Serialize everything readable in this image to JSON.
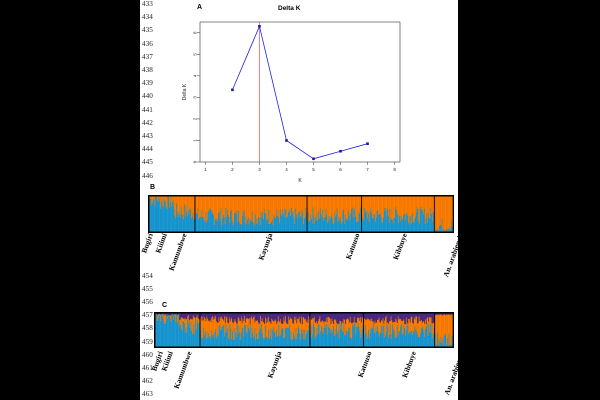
{
  "line_numbers_top": [
    "433",
    "434",
    "435",
    "436",
    "437",
    "438",
    "439",
    "440",
    "441",
    "442",
    "443",
    "444",
    "445",
    "446"
  ],
  "line_numbers_mid": [
    "454",
    "455",
    "456",
    "457",
    "458",
    "459",
    "460",
    "461",
    "462",
    "463"
  ],
  "panel_a": {
    "letter": "A",
    "chart_data": {
      "type": "line",
      "title": "Delta K",
      "xlabel": "K",
      "ylabel": "Delta K",
      "x": [
        2,
        3,
        4,
        5,
        6,
        7
      ],
      "y": [
        3.35,
        6.3,
        1.0,
        0.15,
        0.5,
        0.85
      ],
      "xlim": [
        0.8,
        8.2
      ],
      "ylim": [
        0,
        6.5
      ],
      "xticks": [
        "1",
        "2",
        "3",
        "4",
        "5",
        "6",
        "7",
        "8"
      ],
      "yticks": [
        "0",
        "1",
        "2",
        "3",
        "4",
        "5",
        "6"
      ],
      "highlight_x": 3,
      "line_color": "#2222dd",
      "highlight_color": "#ff4444",
      "grid": false
    }
  },
  "panel_b": {
    "letter": "B",
    "chart_data": {
      "type": "bar",
      "stacked": true,
      "clusters": 2,
      "colors": [
        "#1a9bd7",
        "#ff7f00"
      ],
      "groups": [
        {
          "name": "Bugiri",
          "label": "Bugiri",
          "share": 0.03,
          "blue_mean": 0.93
        },
        {
          "name": "Kiiimi",
          "label": "Kiiimi",
          "share": 0.05,
          "blue_mean": 0.85
        },
        {
          "name": "Kamumbwe",
          "label": "Kamumbwe",
          "share": 0.07,
          "blue_mean": 0.55
        },
        {
          "name": "Kayunja",
          "label": "Kayunja",
          "share": 0.37,
          "blue_mean": 0.42
        },
        {
          "name": "Katuuso",
          "label": "Katuuso",
          "share": 0.18,
          "blue_mean": 0.45
        },
        {
          "name": "Kibbuye",
          "label": "Kibbuye",
          "share": 0.24,
          "blue_mean": 0.45
        },
        {
          "name": "An. arabiensis",
          "label": "An. arabiensis",
          "share": 0.06,
          "blue_mean": 0.15
        }
      ],
      "dividers_after": [
        "Kamumbwe",
        "Kayunja",
        "Katuuso",
        "Kibbuye"
      ]
    },
    "labels": [
      "Bugiri",
      "Kiiimi",
      "Kamumbwe",
      "Kayunja",
      "Katuuso",
      "Kibbuye",
      "An. arabiensis"
    ]
  },
  "panel_c": {
    "letter": "C",
    "chart_data": {
      "type": "bar",
      "stacked": true,
      "clusters": 3,
      "colors": [
        "#1a9bd7",
        "#ff7f00",
        "#4b2a86"
      ],
      "groups": [
        {
          "name": "Bugiri",
          "label": "Bugiri",
          "share": 0.03,
          "blue_mean": 0.95,
          "purple_mean": 0.03
        },
        {
          "name": "Kiiimi",
          "label": "Kiiimi",
          "share": 0.05,
          "blue_mean": 0.88,
          "purple_mean": 0.05
        },
        {
          "name": "Kamumbwe",
          "label": "Kamumbwe",
          "share": 0.07,
          "blue_mean": 0.58,
          "purple_mean": 0.12
        },
        {
          "name": "Kayunja",
          "label": "Kayunja",
          "share": 0.37,
          "blue_mean": 0.42,
          "purple_mean": 0.18
        },
        {
          "name": "Katuuso",
          "label": "Katuuso",
          "share": 0.18,
          "blue_mean": 0.47,
          "purple_mean": 0.18
        },
        {
          "name": "Kibbuye",
          "label": "Kibbuye",
          "share": 0.24,
          "blue_mean": 0.47,
          "purple_mean": 0.18
        },
        {
          "name": "An. arabiensis",
          "label": "An. arabiensis",
          "share": 0.06,
          "blue_mean": 0.18,
          "purple_mean": 0.03
        }
      ],
      "dividers_after": [
        "Kamumbwe",
        "Kayunja",
        "Katuuso",
        "Kibbuye"
      ]
    },
    "labels": [
      "Bugiri",
      "Kiiimi",
      "Kamumbwe",
      "Kayunja",
      "Katuuso",
      "Kibbuye",
      "An. arabiensis"
    ]
  }
}
